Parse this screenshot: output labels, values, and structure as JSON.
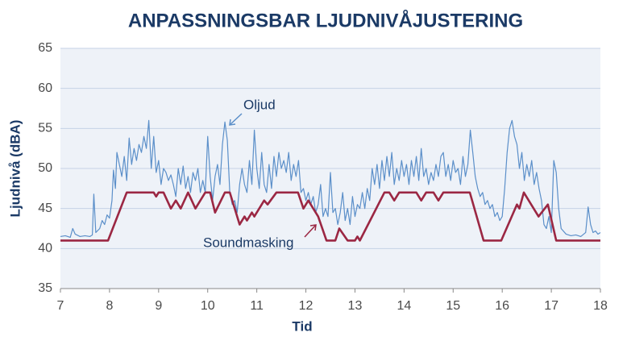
{
  "chart_data": {
    "type": "line",
    "title": "ANPASSNINGSBAR LJUDNIVÅJUSTERING",
    "x_label": "Tid",
    "y_label": "Ljudnivå (dBA)",
    "xlim": [
      7,
      18
    ],
    "xticks": [
      7,
      8,
      9,
      10,
      11,
      12,
      13,
      14,
      15,
      16,
      17,
      18
    ],
    "ylim": [
      35,
      65
    ],
    "yticks": [
      35,
      40,
      45,
      50,
      55,
      60,
      65
    ],
    "grid": true,
    "series": [
      {
        "name": "Oljud",
        "color": "#5b8fc9",
        "x": [
          7,
          7.1,
          7.2,
          7.25,
          7.3,
          7.4,
          7.5,
          7.6,
          7.65,
          7.68,
          7.72,
          7.8,
          7.85,
          7.9,
          7.95,
          8.0,
          8.05,
          8.08,
          8.12,
          8.15,
          8.2,
          8.25,
          8.3,
          8.35,
          8.4,
          8.45,
          8.5,
          8.55,
          8.6,
          8.65,
          8.7,
          8.75,
          8.8,
          8.85,
          8.9,
          8.95,
          9.0,
          9.05,
          9.1,
          9.15,
          9.2,
          9.25,
          9.3,
          9.35,
          9.4,
          9.45,
          9.5,
          9.55,
          9.6,
          9.65,
          9.7,
          9.75,
          9.8,
          9.85,
          9.9,
          9.95,
          10.0,
          10.05,
          10.1,
          10.15,
          10.2,
          10.25,
          10.3,
          10.35,
          10.4,
          10.45,
          10.5,
          10.55,
          10.6,
          10.65,
          10.7,
          10.75,
          10.8,
          10.85,
          10.9,
          10.95,
          11.0,
          11.05,
          11.1,
          11.15,
          11.2,
          11.25,
          11.3,
          11.35,
          11.4,
          11.45,
          11.5,
          11.55,
          11.6,
          11.65,
          11.7,
          11.75,
          11.8,
          11.85,
          11.9,
          11.95,
          12.0,
          12.05,
          12.1,
          12.15,
          12.2,
          12.25,
          12.3,
          12.35,
          12.4,
          12.45,
          12.5,
          12.55,
          12.6,
          12.65,
          12.7,
          12.75,
          12.8,
          12.85,
          12.9,
          12.95,
          13.0,
          13.05,
          13.1,
          13.15,
          13.2,
          13.25,
          13.3,
          13.35,
          13.4,
          13.45,
          13.5,
          13.55,
          13.6,
          13.65,
          13.7,
          13.75,
          13.8,
          13.85,
          13.9,
          13.95,
          14.0,
          14.05,
          14.1,
          14.15,
          14.2,
          14.25,
          14.3,
          14.35,
          14.4,
          14.45,
          14.5,
          14.55,
          14.6,
          14.65,
          14.7,
          14.75,
          14.8,
          14.85,
          14.9,
          14.95,
          15.0,
          15.05,
          15.1,
          15.15,
          15.2,
          15.25,
          15.3,
          15.35,
          15.4,
          15.45,
          15.5,
          15.55,
          15.6,
          15.65,
          15.7,
          15.75,
          15.8,
          15.85,
          15.9,
          15.95,
          16.0,
          16.05,
          16.1,
          16.15,
          16.2,
          16.25,
          16.3,
          16.35,
          16.4,
          16.45,
          16.5,
          16.55,
          16.6,
          16.65,
          16.7,
          16.75,
          16.8,
          16.85,
          16.9,
          16.95,
          17.0,
          17.05,
          17.1,
          17.15,
          17.2,
          17.3,
          17.4,
          17.5,
          17.6,
          17.7,
          17.75,
          17.8,
          17.85,
          17.9,
          17.95,
          18.0
        ],
        "values": [
          41.5,
          41.6,
          41.4,
          42.5,
          41.8,
          41.5,
          41.6,
          41.5,
          41.7,
          46.8,
          42,
          42.5,
          43.5,
          43,
          44.2,
          43.8,
          46,
          49.8,
          47.5,
          52,
          50.5,
          49,
          51.5,
          48.5,
          53.8,
          50.5,
          52.5,
          51,
          53,
          52,
          54,
          52.5,
          56,
          50,
          54,
          49.5,
          51,
          48,
          50,
          49.5,
          48.5,
          49.2,
          48,
          46.5,
          50,
          48,
          50.3,
          47.5,
          49,
          47,
          49.5,
          48.5,
          50,
          47,
          48.5,
          47,
          54,
          49,
          46,
          49,
          50.5,
          48,
          53,
          55.8,
          53.5,
          47,
          45.5,
          46,
          44.5,
          48,
          50,
          48,
          47,
          51,
          48,
          54.8,
          50,
          47.5,
          52,
          48,
          47,
          50.5,
          47.5,
          51.5,
          49,
          52,
          50,
          51,
          49.5,
          52,
          48.5,
          50.5,
          49,
          51,
          47,
          47.5,
          46,
          47,
          45.5,
          46.5,
          44.5,
          45.5,
          48,
          44,
          45,
          44,
          49.5,
          44.5,
          45,
          43,
          44.5,
          47,
          43.5,
          45,
          43,
          46.5,
          44,
          45.5,
          45,
          47,
          45,
          47.5,
          46,
          50,
          48,
          50.5,
          47.5,
          51,
          48.5,
          51.5,
          49,
          52,
          48,
          50,
          48.5,
          51,
          49,
          50.5,
          48,
          51,
          49,
          51.5,
          48.5,
          52.5,
          49,
          50,
          48,
          49.5,
          48.5,
          50.5,
          49,
          51.5,
          52,
          49,
          50.5,
          48.5,
          51,
          49.5,
          50,
          48,
          51.5,
          49,
          50.5,
          54.8,
          52,
          49,
          47.5,
          46.5,
          47,
          45.5,
          46,
          45,
          45.5,
          44,
          44.5,
          43.5,
          44,
          47.5,
          52,
          55,
          56,
          54,
          53,
          50,
          52,
          48.5,
          50.5,
          49,
          51,
          48,
          49.5,
          47.5,
          46,
          43,
          42.5,
          44,
          42,
          51,
          49.5,
          45,
          42.5,
          41.8,
          41.6,
          41.7,
          41.5,
          42,
          45.2,
          43,
          42,
          42.2,
          41.8,
          42
        ]
      },
      {
        "name": "Soundmasking",
        "color": "#9b2743",
        "x": [
          7,
          7.97,
          8.35,
          8.9,
          8.95,
          9.0,
          9.1,
          9.25,
          9.35,
          9.45,
          9.6,
          9.75,
          9.95,
          10.05,
          10.15,
          10.35,
          10.45,
          10.65,
          10.75,
          10.8,
          10.9,
          10.95,
          11.15,
          11.22,
          11.4,
          11.84,
          11.95,
          12.05,
          12.15,
          12.25,
          12.42,
          12.6,
          12.68,
          12.85,
          13.0,
          13.05,
          13.1,
          13.35,
          13.6,
          13.7,
          13.8,
          13.9,
          14.25,
          14.35,
          14.45,
          14.6,
          14.7,
          14.8,
          15.34,
          15.62,
          15.98,
          16.3,
          16.35,
          16.44,
          16.74,
          16.93,
          17.1,
          18
        ],
        "values": [
          41,
          41,
          47,
          47,
          46.5,
          47,
          47,
          45,
          46,
          45,
          47,
          45,
          47,
          47,
          44.5,
          47,
          47,
          43,
          44,
          43.5,
          44.5,
          44,
          46,
          45.5,
          47,
          47,
          45,
          46,
          45,
          44,
          41,
          41,
          42.5,
          41,
          41,
          41.5,
          41,
          44,
          47,
          47,
          46,
          47,
          47,
          46,
          47,
          47,
          46,
          47,
          47,
          41,
          41,
          45.5,
          45,
          47,
          44,
          45.5,
          41,
          41
        ]
      }
    ]
  }
}
